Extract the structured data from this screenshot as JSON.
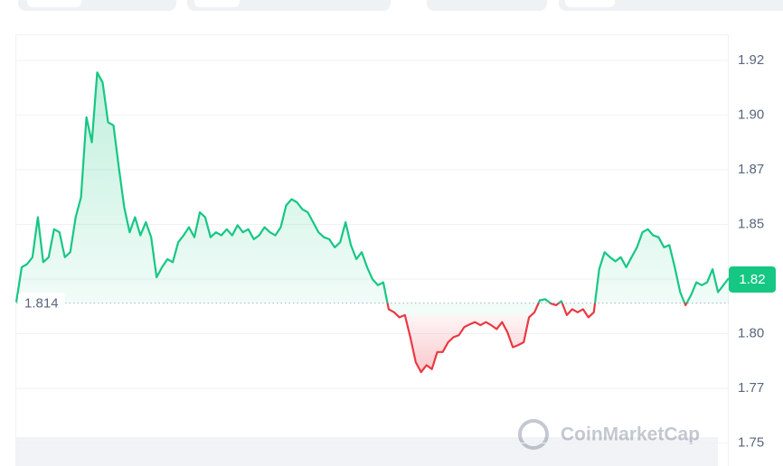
{
  "chart_data": {
    "type": "line",
    "values": [
      1.8144,
      1.8304,
      1.8318,
      1.835,
      1.8533,
      1.8327,
      1.835,
      1.8478,
      1.8464,
      1.835,
      1.8373,
      1.8533,
      1.8624,
      1.899,
      1.8875,
      1.9195,
      1.9149,
      1.8967,
      1.8953,
      1.8761,
      1.8578,
      1.8464,
      1.8533,
      1.845,
      1.851,
      1.8441,
      1.8258,
      1.8304,
      1.8341,
      1.8327,
      1.8418,
      1.845,
      1.8487,
      1.8441,
      1.8555,
      1.8533,
      1.8441,
      1.8464,
      1.845,
      1.8478,
      1.845,
      1.8496,
      1.8464,
      1.8478,
      1.8432,
      1.845,
      1.8487,
      1.8464,
      1.845,
      1.8487,
      1.8587,
      1.8615,
      1.8601,
      1.8569,
      1.8555,
      1.851,
      1.8464,
      1.8441,
      1.8432,
      1.8395,
      1.8418,
      1.851,
      1.8405,
      1.8341,
      1.8373,
      1.8304,
      1.8249,
      1.8222,
      1.8235,
      1.8112,
      1.8098,
      1.8075,
      1.8085,
      1.7984,
      1.787,
      1.7824,
      1.7856,
      1.7838,
      1.7916,
      1.7916,
      1.7961,
      1.7984,
      1.7993,
      1.803,
      1.8043,
      1.8053,
      1.8039,
      1.8053,
      1.8039,
      1.8021,
      1.8053,
      1.8007,
      1.7938,
      1.7948,
      1.7961,
      1.8075,
      1.8098,
      1.8153,
      1.8158,
      1.8139,
      1.813,
      1.8149,
      1.8085,
      1.8112,
      1.8098,
      1.8112,
      1.8075,
      1.8098,
      1.8295,
      1.8373,
      1.835,
      1.8331,
      1.835,
      1.8304,
      1.835,
      1.8395,
      1.8464,
      1.8478,
      1.845,
      1.8441,
      1.8395,
      1.8405,
      1.8304,
      1.819,
      1.813,
      1.8176,
      1.8235,
      1.8222,
      1.8235,
      1.8295,
      1.819,
      1.8222,
      1.8254
    ],
    "baseline": 1.814,
    "up_color": "#16c784",
    "down_color": "#ea3943",
    "current_price": {
      "value": 1.825,
      "label": "1.82"
    },
    "ylim": [
      1.7395,
      1.9365
    ],
    "yticks": [
      {
        "value": 1.925,
        "label": "1.92"
      },
      {
        "value": 1.9,
        "label": "1.90"
      },
      {
        "value": 1.875,
        "label": "1.87"
      },
      {
        "value": 1.85,
        "label": "1.85"
      },
      {
        "value": 1.8,
        "label": "1.80"
      },
      {
        "value": 1.775,
        "label": "1.77"
      },
      {
        "value": 1.75,
        "label": "1.75"
      }
    ],
    "grid": true,
    "watermark": "CoinMarketCap"
  }
}
